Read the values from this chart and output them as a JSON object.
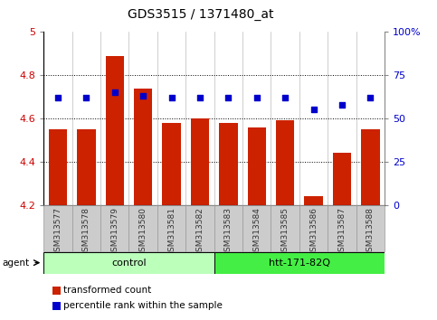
{
  "title": "GDS3515 / 1371480_at",
  "samples": [
    "GSM313577",
    "GSM313578",
    "GSM313579",
    "GSM313580",
    "GSM313581",
    "GSM313582",
    "GSM313583",
    "GSM313584",
    "GSM313585",
    "GSM313586",
    "GSM313587",
    "GSM313588"
  ],
  "bar_values": [
    4.55,
    4.55,
    4.89,
    4.74,
    4.58,
    4.6,
    4.58,
    4.56,
    4.59,
    4.24,
    4.44,
    4.55
  ],
  "dot_values_pct": [
    62,
    62,
    65,
    63,
    62,
    62,
    62,
    62,
    62,
    55,
    58,
    62
  ],
  "bar_bottom": 4.2,
  "ylim_left": [
    4.2,
    5.0
  ],
  "ylim_right": [
    0,
    100
  ],
  "yticks_left": [
    4.2,
    4.4,
    4.6,
    4.8,
    5.0
  ],
  "ytick_labels_left": [
    "4.2",
    "4.4",
    "4.6",
    "4.8",
    "5"
  ],
  "yticks_right": [
    0,
    25,
    50,
    75,
    100
  ],
  "ytick_labels_right": [
    "0",
    "25",
    "50",
    "75",
    "100%"
  ],
  "grid_values": [
    4.4,
    4.6,
    4.8
  ],
  "bar_color": "#cc2200",
  "dot_color": "#0000cc",
  "dot_size": 18,
  "bar_width": 0.65,
  "groups": [
    {
      "label": "control",
      "start": 0,
      "end": 5,
      "color": "#bbffbb"
    },
    {
      "label": "htt-171-82Q",
      "start": 6,
      "end": 11,
      "color": "#44ee44"
    }
  ],
  "group_row_label": "agent",
  "legend_items": [
    {
      "color": "#cc2200",
      "label": "transformed count"
    },
    {
      "color": "#0000cc",
      "label": "percentile rank within the sample"
    }
  ],
  "sample_box_color": "#cccccc",
  "sample_box_edge": "#999999",
  "left_axis_color": "#cc0000",
  "right_axis_color": "#0000cc",
  "bg_color": "#ffffff"
}
